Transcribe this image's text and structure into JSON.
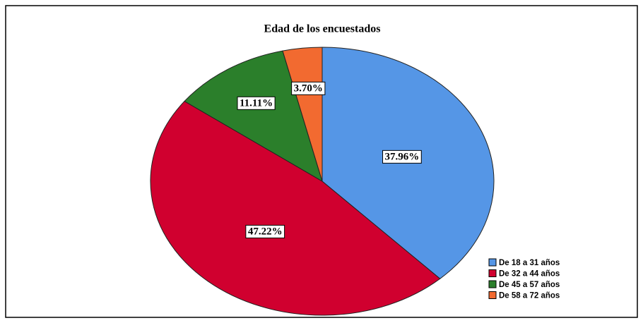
{
  "chart_data": {
    "type": "pie",
    "title": "Edad de los encuestados",
    "categories": [
      "De 18 a 31 años",
      "De 32 a 44 años",
      "De 45 a 57 años",
      "De 58 a 72 años"
    ],
    "values": [
      37.96,
      47.22,
      11.11,
      3.7
    ],
    "value_labels": [
      "37.96%",
      "47.22%",
      "11.11%",
      "3.70%"
    ],
    "colors": [
      "#5596e6",
      "#d0002f",
      "#2b7f2b",
      "#f26a30"
    ],
    "legend": "lower right"
  }
}
